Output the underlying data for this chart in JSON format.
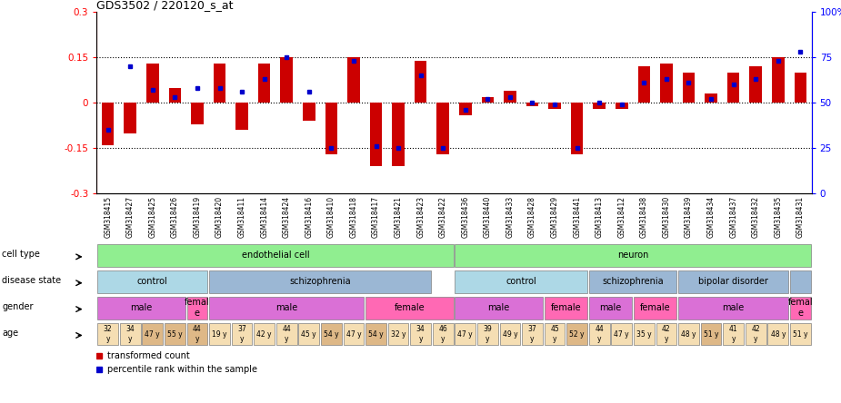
{
  "title": "GDS3502 / 220120_s_at",
  "samples": [
    "GSM318415",
    "GSM318427",
    "GSM318425",
    "GSM318426",
    "GSM318419",
    "GSM318420",
    "GSM318411",
    "GSM318414",
    "GSM318424",
    "GSM318416",
    "GSM318410",
    "GSM318418",
    "GSM318417",
    "GSM318421",
    "GSM318423",
    "GSM318422",
    "GSM318436",
    "GSM318440",
    "GSM318433",
    "GSM318428",
    "GSM318429",
    "GSM318441",
    "GSM318413",
    "GSM318412",
    "GSM318438",
    "GSM318430",
    "GSM318439",
    "GSM318434",
    "GSM318437",
    "GSM318432",
    "GSM318435",
    "GSM318431"
  ],
  "bar_values": [
    -0.14,
    -0.1,
    0.13,
    0.05,
    -0.07,
    0.13,
    -0.09,
    0.13,
    0.15,
    -0.06,
    -0.17,
    0.15,
    -0.21,
    -0.21,
    0.14,
    -0.17,
    -0.04,
    0.02,
    0.04,
    -0.01,
    -0.02,
    -0.17,
    -0.02,
    -0.02,
    0.12,
    0.13,
    0.1,
    0.03,
    0.1,
    0.12,
    0.15,
    0.1
  ],
  "dot_values": [
    35,
    70,
    57,
    53,
    58,
    58,
    56,
    63,
    75,
    56,
    25,
    73,
    26,
    25,
    65,
    25,
    46,
    52,
    53,
    50,
    49,
    25,
    50,
    49,
    61,
    63,
    61,
    52,
    60,
    63,
    73,
    78
  ],
  "cell_type_groups": [
    {
      "label": "endothelial cell",
      "start": 0,
      "end": 16,
      "color": "#90EE90"
    },
    {
      "label": "neuron",
      "start": 16,
      "end": 32,
      "color": "#90EE90"
    }
  ],
  "disease_state_groups": [
    {
      "label": "control",
      "start": 0,
      "end": 5,
      "color": "#ADD8E6"
    },
    {
      "label": "schizophrenia",
      "start": 5,
      "end": 15,
      "color": "#9BB7D4"
    },
    {
      "label": "control",
      "start": 16,
      "end": 22,
      "color": "#ADD8E6"
    },
    {
      "label": "schizophrenia",
      "start": 22,
      "end": 26,
      "color": "#9BB7D4"
    },
    {
      "label": "bipolar disorder",
      "start": 26,
      "end": 31,
      "color": "#9BB7D4"
    },
    {
      "label": "",
      "start": 31,
      "end": 32,
      "color": "#9BB7D4"
    }
  ],
  "gender_groups": [
    {
      "label": "male",
      "start": 0,
      "end": 4,
      "color": "#DA70D6"
    },
    {
      "label": "femal\ne",
      "start": 4,
      "end": 5,
      "color": "#FF69B4"
    },
    {
      "label": "male",
      "start": 5,
      "end": 12,
      "color": "#DA70D6"
    },
    {
      "label": "female",
      "start": 12,
      "end": 16,
      "color": "#FF69B4"
    },
    {
      "label": "male",
      "start": 16,
      "end": 20,
      "color": "#DA70D6"
    },
    {
      "label": "female",
      "start": 20,
      "end": 22,
      "color": "#FF69B4"
    },
    {
      "label": "male",
      "start": 22,
      "end": 24,
      "color": "#DA70D6"
    },
    {
      "label": "female",
      "start": 24,
      "end": 26,
      "color": "#FF69B4"
    },
    {
      "label": "male",
      "start": 26,
      "end": 31,
      "color": "#DA70D6"
    },
    {
      "label": "femal\ne",
      "start": 31,
      "end": 32,
      "color": "#FF69B4"
    }
  ],
  "ages": [
    "32\ny",
    "34\ny",
    "47 y",
    "55 y",
    "44\ny",
    "19 y",
    "37\ny",
    "42 y",
    "44\ny",
    "45 y",
    "54 y",
    "47 y",
    "54 y",
    "32 y",
    "34\ny",
    "46\ny",
    "47 y",
    "39\ny",
    "49 y",
    "37\ny",
    "45\ny",
    "52 y",
    "44\ny",
    "47 y",
    "35 y",
    "42\ny",
    "48 y",
    "51 y",
    "41\ny",
    "42\ny",
    "48 y",
    "51 y"
  ],
  "age_colors": [
    "#F5DEB3",
    "#F5DEB3",
    "#DEB887",
    "#DEB887",
    "#DEB887",
    "#F5DEB3",
    "#F5DEB3",
    "#F5DEB3",
    "#F5DEB3",
    "#F5DEB3",
    "#DEB887",
    "#F5DEB3",
    "#DEB887",
    "#F5DEB3",
    "#F5DEB3",
    "#F5DEB3",
    "#F5DEB3",
    "#F5DEB3",
    "#F5DEB3",
    "#F5DEB3",
    "#F5DEB3",
    "#DEB887",
    "#F5DEB3",
    "#F5DEB3",
    "#F5DEB3",
    "#F5DEB3",
    "#F5DEB3",
    "#DEB887",
    "#F5DEB3",
    "#F5DEB3",
    "#F5DEB3",
    "#F5DEB3"
  ],
  "ylim": [
    -0.3,
    0.3
  ],
  "yticks_left": [
    -0.3,
    -0.15,
    0,
    0.15,
    0.3
  ],
  "yticks_right": [
    0,
    25,
    50,
    75,
    100
  ],
  "bar_color": "#CC0000",
  "dot_color": "#0000CC"
}
